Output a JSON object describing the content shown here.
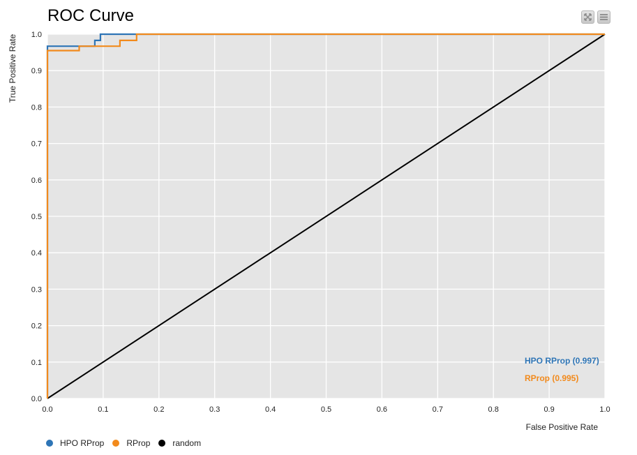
{
  "title": "ROC Curve",
  "toolbar": {
    "expand_icon": "expand-icon",
    "menu_icon": "hamburger-menu-icon"
  },
  "colors": {
    "plot_bg": "#e5e5e5",
    "grid": "#ffffff",
    "hpo": "#2e75b6",
    "rprop": "#f28a1c",
    "random": "#000000"
  },
  "chart_data": {
    "type": "line",
    "title": "ROC Curve",
    "xlabel": "False Positive Rate",
    "ylabel": "True Positive Rate",
    "xlim": [
      0,
      1
    ],
    "ylim": [
      0,
      1
    ],
    "xticks": [
      "0.0",
      "0.1",
      "0.2",
      "0.3",
      "0.4",
      "0.5",
      "0.6",
      "0.7",
      "0.8",
      "0.9",
      "1.0"
    ],
    "yticks": [
      "0.0",
      "0.1",
      "0.2",
      "0.3",
      "0.4",
      "0.5",
      "0.6",
      "0.7",
      "0.8",
      "0.9",
      "1.0"
    ],
    "grid": true,
    "legend_position": "bottom-left",
    "series": [
      {
        "name": "HPO RProp",
        "auc_label": "HPO RProp (0.997)",
        "color": "#2e75b6",
        "x": [
          0.0,
          0.0,
          0.085,
          0.085,
          0.095,
          0.095,
          1.0
        ],
        "y": [
          0.0,
          0.967,
          0.967,
          0.983,
          0.983,
          1.0,
          1.0
        ]
      },
      {
        "name": "RProp",
        "auc_label": "RProp (0.995)",
        "color": "#f28a1c",
        "x": [
          0.0,
          0.0,
          0.057,
          0.057,
          0.13,
          0.13,
          0.16,
          0.16,
          1.0
        ],
        "y": [
          0.0,
          0.955,
          0.955,
          0.967,
          0.967,
          0.983,
          0.983,
          1.0,
          1.0
        ]
      },
      {
        "name": "random",
        "color": "#000000",
        "x": [
          0,
          1
        ],
        "y": [
          0,
          1
        ]
      }
    ]
  }
}
